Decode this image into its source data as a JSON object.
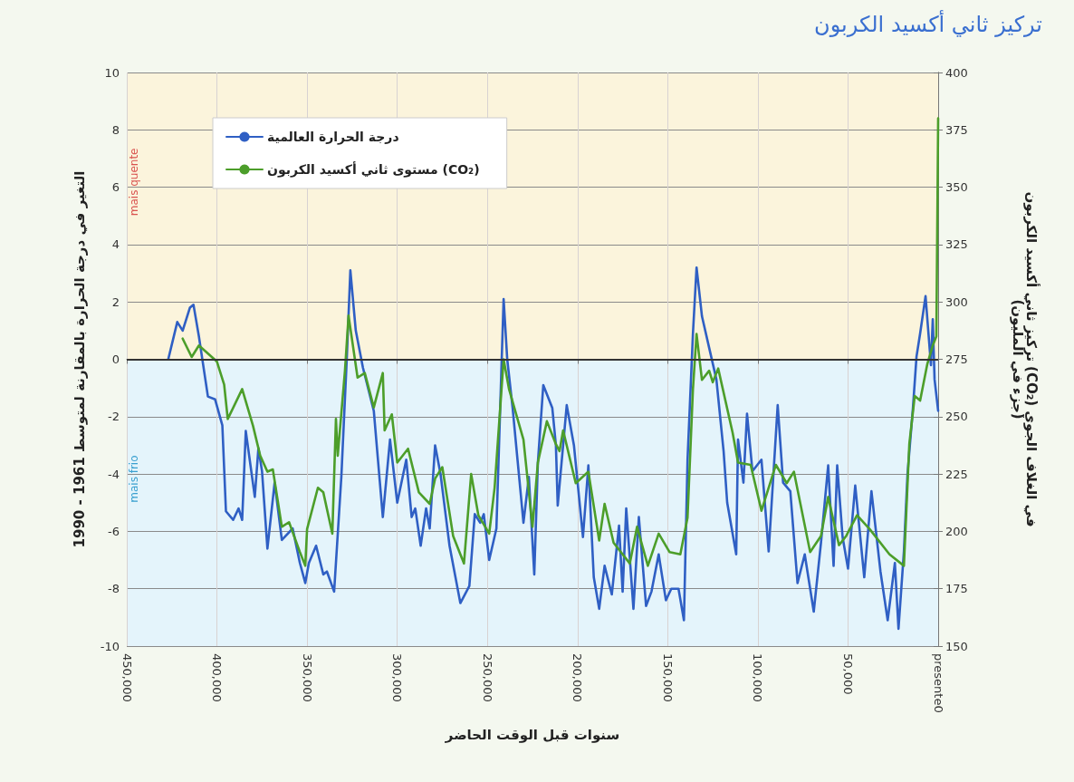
{
  "chart_data": {
    "type": "line",
    "title": "تركيز ثاني أكسيد الكربون",
    "xlabel": "سنوات قبل الوقت الحاضر",
    "ylabel": "التغير في درجة الحرارة بالمقارنة لمتوسط 1961 - 1990",
    "y2label": "تركيز ثاني أكسيد الكربون (CO₂) في الغلاف الجوي\n(جزء في المليون)",
    "xlim": [
      450000,
      0
    ],
    "xticks": [
      {
        "value": 450000,
        "label": "450,000"
      },
      {
        "value": 400000,
        "label": "400,000"
      },
      {
        "value": 350000,
        "label": "350,000"
      },
      {
        "value": 300000,
        "label": "300,000"
      },
      {
        "value": 250000,
        "label": "250,000"
      },
      {
        "value": 200000,
        "label": "200,000"
      },
      {
        "value": 150000,
        "label": "150,000"
      },
      {
        "value": 100000,
        "label": "100,000"
      },
      {
        "value": 50000,
        "label": "50,000"
      },
      {
        "value": 0,
        "label": "presente0"
      }
    ],
    "ylim": [
      -10,
      10
    ],
    "yticks": [
      -10,
      -8,
      -6,
      -4,
      -2,
      0,
      2,
      4,
      6,
      8,
      10
    ],
    "y2lim": [
      150,
      400
    ],
    "y2ticks": [
      150,
      175,
      200,
      225,
      250,
      275,
      300,
      325,
      350,
      375,
      400
    ],
    "grid": true,
    "legend": "top left",
    "marker": "none",
    "bands": [
      {
        "axis": "y",
        "from": 0,
        "to": 10,
        "label": "mais quente",
        "color": "#fbf4dc"
      },
      {
        "axis": "y",
        "from": -10,
        "to": 0,
        "label": "mais frio",
        "color": "#e4f4fb"
      }
    ],
    "ref_lines": [
      {
        "axis": "y",
        "value": 0,
        "color": "#333333"
      }
    ],
    "series": [
      {
        "name": "درجة الحرارة العالمية",
        "color": "#2f5fc4",
        "x": [
          427000,
          422000,
          419000,
          415000,
          413000,
          410000,
          405000,
          401000,
          397000,
          395000,
          391000,
          388000,
          386000,
          384000,
          379000,
          377000,
          375000,
          372000,
          368000,
          364000,
          358000,
          354000,
          351000,
          349000,
          345000,
          341000,
          339000,
          335000,
          331000,
          328000,
          326000,
          323000,
          319000,
          313000,
          308000,
          304000,
          300000,
          295000,
          292000,
          290000,
          287000,
          284000,
          282000,
          279000,
          276000,
          271000,
          265000,
          260000,
          257000,
          254000,
          252000,
          249000,
          245000,
          241000,
          239000,
          236000,
          230000,
          227000,
          224000,
          222000,
          219000,
          214000,
          212000,
          211000,
          206000,
          202000,
          197000,
          194000,
          191000,
          188000,
          185000,
          181000,
          177000,
          175000,
          173000,
          169000,
          166000,
          162000,
          159000,
          155000,
          151000,
          148000,
          144000,
          141000,
          139000,
          136000,
          134000,
          131000,
          127000,
          123000,
          119000,
          117000,
          112000,
          111000,
          108000,
          106000,
          103000,
          98000,
          94000,
          89000,
          86000,
          82000,
          78000,
          74000,
          69000,
          65000,
          61000,
          58000,
          56000,
          53000,
          50000,
          46000,
          41000,
          37000,
          32000,
          28000,
          24000,
          22000,
          19000,
          17000,
          14000,
          12000,
          10000,
          7000,
          4000,
          3000,
          2000,
          0
        ],
        "values": [
          0,
          1.3,
          1.0,
          1.8,
          1.9,
          0.8,
          -1.3,
          -1.4,
          -2.3,
          -5.3,
          -5.6,
          -5.2,
          -5.6,
          -2.5,
          -4.8,
          -3.1,
          -3.9,
          -6.6,
          -4.3,
          -6.3,
          -5.9,
          -7.1,
          -7.8,
          -7.1,
          -6.5,
          -7.5,
          -7.4,
          -8.1,
          -4.1,
          0,
          3.1,
          1.0,
          -0.3,
          -1.8,
          -5.5,
          -2.8,
          -5.0,
          -3.5,
          -5.5,
          -5.2,
          -6.5,
          -5.2,
          -5.9,
          -3.0,
          -4.0,
          -6.5,
          -8.5,
          -7.9,
          -5.4,
          -5.7,
          -5.4,
          -7.0,
          -5.9,
          2.1,
          0,
          -1.7,
          -5.7,
          -4.1,
          -7.5,
          -3.6,
          -0.9,
          -1.7,
          -3.0,
          -5.1,
          -1.6,
          -3.0,
          -6.2,
          -3.7,
          -7.6,
          -8.7,
          -7.2,
          -8.2,
          -5.8,
          -8.1,
          -5.2,
          -8.7,
          -5.5,
          -8.6,
          -8.1,
          -6.8,
          -8.4,
          -8.0,
          -8.0,
          -9.1,
          -3.5,
          0.9,
          3.2,
          1.5,
          0.4,
          -0.7,
          -3.2,
          -5.0,
          -6.8,
          -2.8,
          -4.3,
          -1.9,
          -3.9,
          -3.5,
          -6.7,
          -1.6,
          -4.3,
          -4.6,
          -7.8,
          -6.8,
          -8.8,
          -6.4,
          -3.7,
          -7.2,
          -3.7,
          -6.2,
          -7.3,
          -4.4,
          -7.6,
          -4.6,
          -7.4,
          -9.1,
          -7.1,
          -9.4,
          -6.7,
          -4.0,
          -1.7,
          0.1,
          0.9,
          2.2,
          -0.2,
          1.4,
          -0.7,
          -1.8
        ]
      },
      {
        "name": "مستوى ثاني أكسيد الكربون (CO₂)",
        "color": "#4c9e2a",
        "axis": "y2",
        "x": [
          419000,
          414000,
          410000,
          400000,
          396000,
          394000,
          386000,
          380000,
          376000,
          372000,
          369000,
          364000,
          360000,
          354000,
          351000,
          350000,
          344000,
          341000,
          336000,
          334000,
          333000,
          329000,
          327000,
          322000,
          318000,
          313000,
          308000,
          307000,
          303000,
          300000,
          294000,
          288000,
          282000,
          279000,
          275000,
          269000,
          263000,
          259000,
          255000,
          249000,
          246000,
          241000,
          238000,
          234000,
          230000,
          225000,
          222000,
          217000,
          212000,
          210000,
          208000,
          201000,
          194000,
          188000,
          185000,
          180000,
          171000,
          167000,
          161000,
          155000,
          149000,
          143000,
          139000,
          136000,
          134000,
          131000,
          127000,
          125000,
          122000,
          114000,
          111000,
          104000,
          98000,
          90000,
          84000,
          80000,
          71000,
          65000,
          61000,
          55000,
          51000,
          45000,
          38000,
          27000,
          19000,
          16000,
          13000,
          10000,
          6000,
          3000,
          1000,
          0
        ],
        "values": [
          284,
          276,
          281,
          274,
          264,
          249,
          262,
          246,
          233,
          226,
          227,
          202,
          204,
          191,
          185,
          201,
          219,
          217,
          199,
          249,
          233,
          270,
          294,
          267,
          269,
          254,
          269,
          244,
          251,
          230,
          236,
          217,
          212,
          223,
          228,
          198,
          186,
          225,
          207,
          199,
          219,
          275,
          262,
          251,
          240,
          202,
          230,
          248,
          238,
          235,
          244,
          221,
          226,
          196,
          212,
          195,
          186,
          202,
          185,
          199,
          191,
          190,
          206,
          262,
          286,
          266,
          270,
          265,
          271,
          243,
          230,
          229,
          209,
          229,
          221,
          226,
          191,
          198,
          215,
          194,
          198,
          207,
          201,
          190,
          185,
          238,
          259,
          257,
          273,
          281,
          285,
          380
        ]
      }
    ]
  }
}
